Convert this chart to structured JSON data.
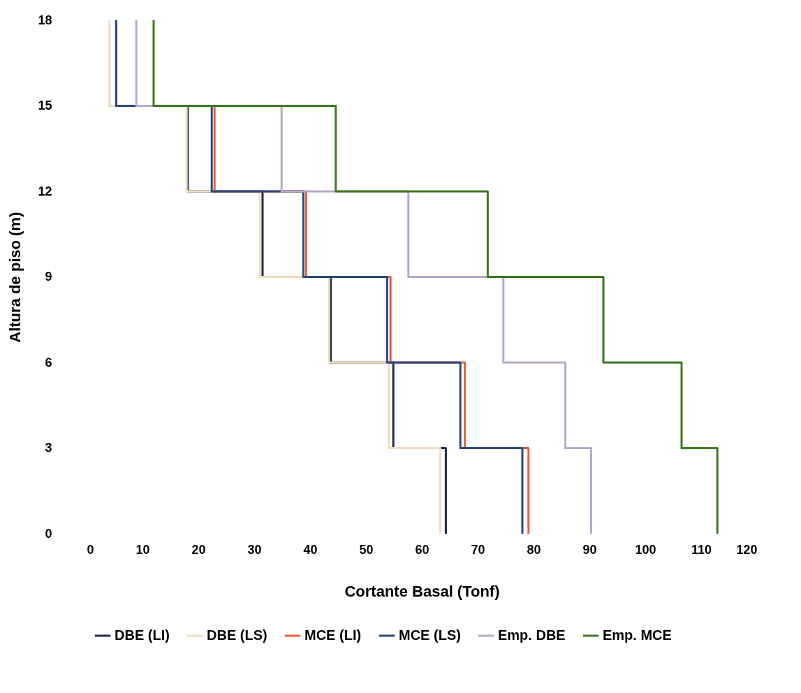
{
  "chart_data": {
    "type": "line",
    "xlabel": "Cortante Basal (Tonf)",
    "ylabel": "Altura de piso (m)",
    "xlim": [
      0,
      120
    ],
    "xticks": [
      0,
      10,
      20,
      30,
      40,
      50,
      60,
      70,
      80,
      90,
      100,
      110,
      120
    ],
    "ylim": [
      0,
      18
    ],
    "yticks": [
      0,
      3,
      6,
      9,
      12,
      15,
      18
    ],
    "grid": false,
    "legend": "bottom",
    "marker": "none",
    "line_style": "solid",
    "series": [
      {
        "name": "DBE (LI)",
        "color": "#1f2a4a",
        "x": [
          64.3,
          64.3,
          54.9,
          54.9,
          43.7,
          43.7,
          31.5,
          31.5,
          18.1,
          18.1,
          5.3,
          5.3
        ],
        "values": [
          0,
          3,
          3,
          6,
          6,
          9,
          9,
          12,
          12,
          15,
          15,
          18
        ]
      },
      {
        "name": "DBE (LS)",
        "color": "#f0dcc0",
        "x": [
          63.3,
          63.3,
          54.1,
          54.1,
          43.4,
          43.4,
          31,
          31,
          17.9,
          17.9,
          4.1,
          4.1
        ],
        "values": [
          0,
          3,
          3,
          6,
          6,
          9,
          9,
          12,
          12,
          15,
          15,
          18
        ]
      },
      {
        "name": "MCE (LI)",
        "color": "#e8603c",
        "x": [
          79.1,
          79.1,
          67.7,
          67.7,
          54.4,
          54.4,
          39.3,
          39.3,
          22.9,
          22.9,
          null,
          null
        ],
        "values": [
          0,
          3,
          3,
          6,
          6,
          9,
          9,
          12,
          12,
          15,
          null,
          null
        ]
      },
      {
        "name": "MCE (LS)",
        "color": "#2a4a80",
        "x": [
          78,
          78,
          66.9,
          66.9,
          53.8,
          53.8,
          38.8,
          38.8,
          22.4,
          22.4,
          5.3,
          5.3
        ],
        "values": [
          0,
          3,
          3,
          6,
          6,
          9,
          9,
          12,
          12,
          15,
          15,
          18
        ]
      },
      {
        "name": "Emp. DBE",
        "color": "#b8a8c8",
        "x": [
          90.3,
          90.3,
          85.7,
          85.7,
          74.6,
          74.6,
          57.6,
          57.6,
          34.9,
          34.9,
          8.9,
          8.9
        ],
        "values": [
          0,
          3,
          3,
          6,
          6,
          9,
          9,
          12,
          12,
          15,
          15,
          18
        ]
      },
      {
        "name": "Emp. MCE",
        "color": "#3a7a20",
        "x": [
          112.9,
          112.9,
          106.5,
          106.5,
          92.5,
          92.5,
          71.8,
          71.8,
          44.6,
          44.6,
          12,
          12
        ],
        "values": [
          0,
          3,
          3,
          6,
          6,
          9,
          9,
          12,
          12,
          15,
          15,
          18
        ]
      }
    ]
  }
}
